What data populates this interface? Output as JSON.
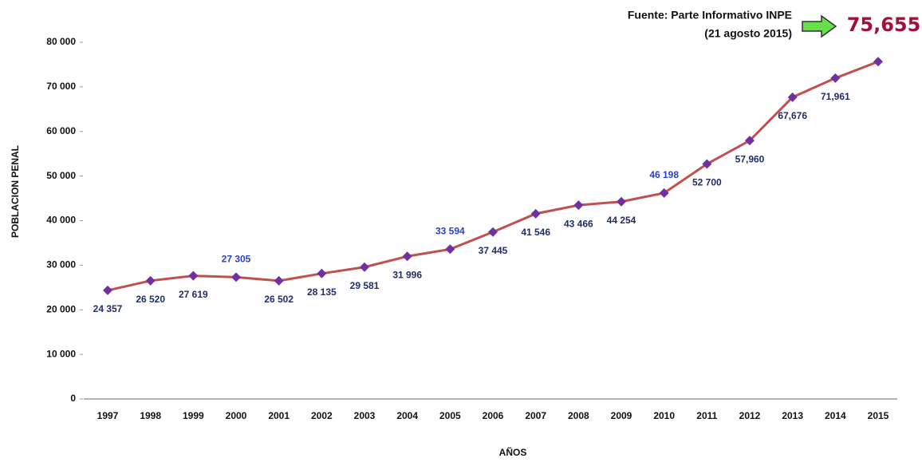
{
  "chart_data": {
    "type": "line",
    "y_axis_label": "POBLACION PENAL",
    "x_axis_label": "AÑOS",
    "annotation": [
      "Fuente: Parte Informativo INPE",
      "(21 agosto 2015)"
    ],
    "categories": [
      "1997",
      "1998",
      "1999",
      "2000",
      "2001",
      "2002",
      "2003",
      "2004",
      "2005",
      "2006",
      "2007",
      "2008",
      "2009",
      "2010",
      "2011",
      "2012",
      "2013",
      "2014",
      "2015"
    ],
    "series": [
      {
        "color": "#c0504d",
        "marker_color": "#7030a0",
        "values": [
          24357,
          26520,
          27619,
          27305,
          26502,
          28135,
          29581,
          31996,
          33594,
          37445,
          41546,
          43466,
          44254,
          46198,
          52700,
          57960,
          67676,
          71961,
          75655
        ],
        "value_labels": [
          "24 357",
          "26 520",
          "27 619",
          "27 305",
          "26 502",
          "28 135",
          "29 581",
          "31 996",
          "33 594",
          "37 445",
          "41 546",
          "43 466",
          "44 254",
          "46 198",
          "52 700",
          "57,960",
          "67,676",
          "71,961",
          "75,655"
        ]
      }
    ],
    "ylim": [
      0,
      80000
    ],
    "yticks": [
      0,
      {
        "value": 10000,
        "label": "10 000"
      },
      {
        "value": 20000,
        "label": "20 000"
      },
      {
        "value": 30000,
        "label": "30 000"
      },
      {
        "value": 40000,
        "label": "40 000"
      },
      {
        "value": 50000,
        "label": "50 000"
      },
      {
        "value": 60000,
        "label": "60 000"
      },
      {
        "value": 70000,
        "label": "70 000"
      },
      {
        "value": 80000,
        "label": "80 000"
      }
    ]
  }
}
